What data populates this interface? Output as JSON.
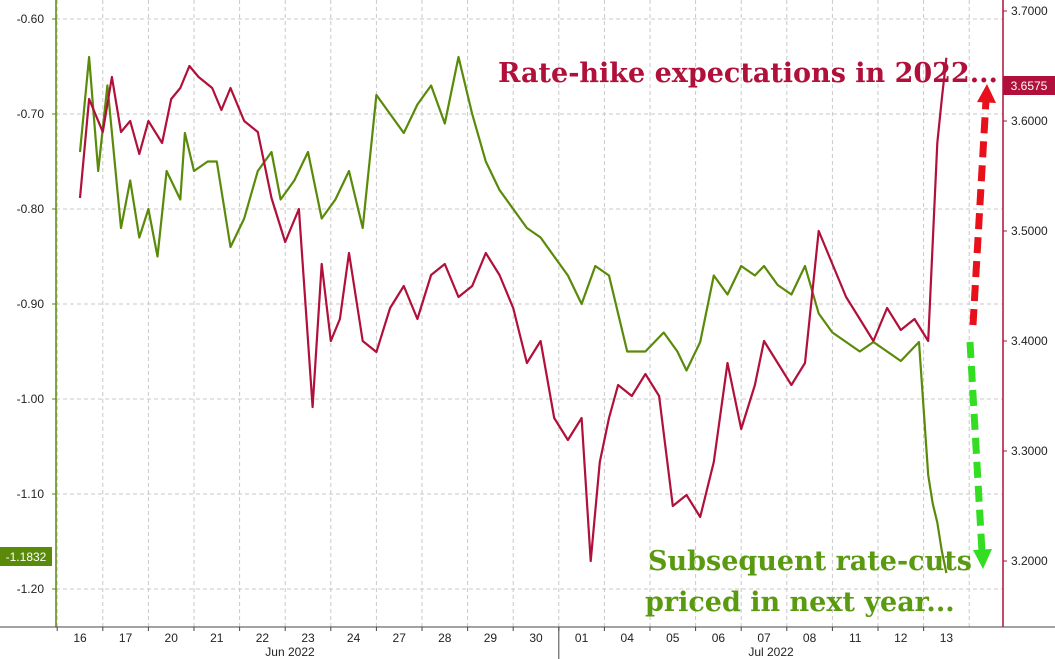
{
  "chart_data": {
    "type": "line",
    "x_ticks": [
      "16",
      "17",
      "20",
      "21",
      "22",
      "23",
      "24",
      "27",
      "28",
      "29",
      "30",
      "01",
      "04",
      "05",
      "06",
      "07",
      "08",
      "11",
      "12",
      "13"
    ],
    "month_labels": [
      "Jun 2022",
      "Jul 2022"
    ],
    "left_axis": {
      "ylim": [
        -1.24,
        -0.58
      ],
      "ticks": [
        -0.6,
        -0.7,
        -0.8,
        -0.9,
        -1.0,
        -1.1,
        -1.2
      ],
      "tick_labels": [
        "-0.60",
        "-0.70",
        "-0.80",
        "-0.90",
        "-1.00",
        "-1.10",
        "-1.20"
      ]
    },
    "right_axis": {
      "ylim": [
        3.14,
        3.71
      ],
      "ticks": [
        3.7,
        3.6,
        3.5,
        3.4,
        3.3,
        3.2
      ],
      "tick_labels": [
        "3.7000",
        "3.6000",
        "3.5000",
        "3.4000",
        "3.3000",
        "3.2000"
      ]
    },
    "grid": true,
    "series": [
      {
        "axis": "left",
        "color": "#5a8a0a",
        "last_label": "-1.1832",
        "x": [
          0,
          0.2,
          0.4,
          0.6,
          0.9,
          1.1,
          1.3,
          1.5,
          1.7,
          1.9,
          2.2,
          2.3,
          2.5,
          2.8,
          3.0,
          3.3,
          3.6,
          3.9,
          4.2,
          4.4,
          4.7,
          5.0,
          5.3,
          5.6,
          5.9,
          6.2,
          6.5,
          6.8,
          7.1,
          7.4,
          7.7,
          8.0,
          8.3,
          8.6,
          8.9,
          9.2,
          9.5,
          9.8,
          10.1,
          10.4,
          10.7,
          11.0,
          11.3,
          11.6,
          12.0,
          12.4,
          12.8,
          13.1,
          13.3,
          13.6,
          13.9,
          14.2,
          14.5,
          14.8,
          15.0,
          15.3,
          15.6,
          15.9,
          16.2,
          16.5,
          16.8,
          17.1,
          17.4,
          17.7,
          18.0,
          18.2,
          18.4,
          18.6,
          18.7,
          18.8,
          18.9,
          19.0
        ],
        "y": [
          -0.74,
          -0.64,
          -0.76,
          -0.67,
          -0.82,
          -0.77,
          -0.83,
          -0.8,
          -0.85,
          -0.76,
          -0.79,
          -0.72,
          -0.76,
          -0.75,
          -0.75,
          -0.84,
          -0.81,
          -0.76,
          -0.74,
          -0.79,
          -0.77,
          -0.74,
          -0.81,
          -0.79,
          -0.76,
          -0.82,
          -0.68,
          -0.7,
          -0.72,
          -0.69,
          -0.67,
          -0.71,
          -0.64,
          -0.7,
          -0.75,
          -0.78,
          -0.8,
          -0.82,
          -0.83,
          -0.85,
          -0.87,
          -0.9,
          -0.86,
          -0.87,
          -0.95,
          -0.95,
          -0.93,
          -0.95,
          -0.97,
          -0.94,
          -0.87,
          -0.89,
          -0.86,
          -0.87,
          -0.86,
          -0.88,
          -0.89,
          -0.86,
          -0.91,
          -0.93,
          -0.94,
          -0.95,
          -0.94,
          -0.95,
          -0.96,
          -0.95,
          -0.94,
          -1.08,
          -1.11,
          -1.13,
          -1.16,
          -1.1832
        ]
      },
      {
        "axis": "right",
        "color": "#b0103a",
        "last_label": "3.6575",
        "x": [
          0,
          0.2,
          0.5,
          0.7,
          0.9,
          1.1,
          1.3,
          1.5,
          1.8,
          2.0,
          2.2,
          2.4,
          2.6,
          2.9,
          3.1,
          3.3,
          3.6,
          3.9,
          4.2,
          4.5,
          4.8,
          5.1,
          5.3,
          5.5,
          5.7,
          5.9,
          6.2,
          6.5,
          6.8,
          7.1,
          7.4,
          7.7,
          8.0,
          8.3,
          8.6,
          8.9,
          9.2,
          9.5,
          9.8,
          10.1,
          10.4,
          10.7,
          11.0,
          11.2,
          11.4,
          11.6,
          11.8,
          12.1,
          12.4,
          12.7,
          13.0,
          13.3,
          13.6,
          13.9,
          14.2,
          14.5,
          14.8,
          15.0,
          15.3,
          15.6,
          15.9,
          16.2,
          16.5,
          16.8,
          17.1,
          17.4,
          17.7,
          18.0,
          18.3,
          18.6,
          18.8,
          18.9,
          19.0
        ],
        "y": [
          3.53,
          3.62,
          3.59,
          3.64,
          3.59,
          3.6,
          3.57,
          3.6,
          3.58,
          3.62,
          3.63,
          3.65,
          3.64,
          3.63,
          3.61,
          3.63,
          3.6,
          3.59,
          3.53,
          3.49,
          3.52,
          3.34,
          3.47,
          3.4,
          3.42,
          3.48,
          3.4,
          3.39,
          3.43,
          3.45,
          3.42,
          3.46,
          3.47,
          3.44,
          3.45,
          3.48,
          3.46,
          3.43,
          3.38,
          3.4,
          3.33,
          3.31,
          3.33,
          3.2,
          3.29,
          3.33,
          3.36,
          3.35,
          3.37,
          3.35,
          3.25,
          3.26,
          3.24,
          3.29,
          3.38,
          3.32,
          3.36,
          3.4,
          3.38,
          3.36,
          3.38,
          3.5,
          3.47,
          3.44,
          3.42,
          3.4,
          3.43,
          3.41,
          3.42,
          3.4,
          3.58,
          3.62,
          3.6575
        ]
      }
    ],
    "annotations": [
      {
        "text": "Rate-hike expectations in 2022...",
        "color": "#b0103a",
        "arrow": "up"
      },
      {
        "text": "Subsequent rate-cuts",
        "color": "#5a9a10"
      },
      {
        "text": "priced in next year...",
        "color": "#5a9a10",
        "arrow": "down"
      }
    ]
  }
}
